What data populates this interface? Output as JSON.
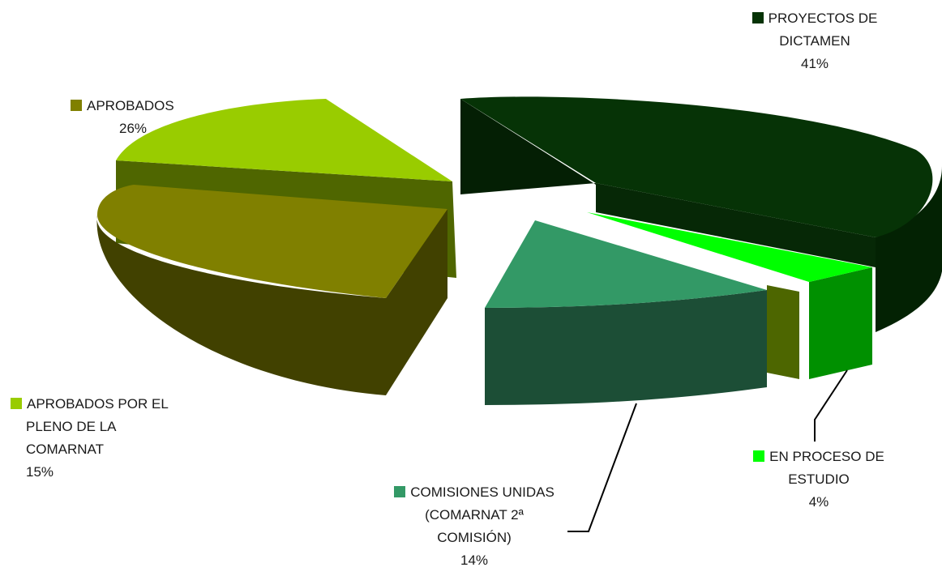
{
  "chart_data": {
    "type": "pie",
    "style": "3d-exploded",
    "slices": [
      {
        "label": "PROYECTOS DE DICTAMEN",
        "label_lines": [
          "PROYECTOS DE",
          "DICTAMEN"
        ],
        "value": 41,
        "display": "41%",
        "color": "#063306"
      },
      {
        "label": "EN PROCESO DE ESTUDIO",
        "label_lines": [
          "EN PROCESO DE",
          "ESTUDIO"
        ],
        "value": 4,
        "display": "4%",
        "color": "#00ff00"
      },
      {
        "label": "COMISIONES UNIDAS (COMARNAT 2ª COMISIÓN)",
        "label_lines": [
          "COMISIONES UNIDAS",
          "(COMARNAT 2ª",
          "COMISIÓN)"
        ],
        "value": 14,
        "display": "14%",
        "color": "#339966"
      },
      {
        "label": "APROBADOS POR EL PLENO DE LA COMARNAT",
        "label_lines": [
          "APROBADOS POR EL",
          "PLENO DE LA",
          "COMARNAT"
        ],
        "value": 15,
        "display": "15%",
        "color": "#808000"
      },
      {
        "label": "APROBADOS",
        "label_lines": [
          "APROBADOS"
        ],
        "value": 26,
        "display": "26%",
        "color": "#99cc00"
      }
    ],
    "legend_swatch_colors": [
      "#063306",
      "#00ff00",
      "#339966",
      "#99cc00",
      "#808000"
    ]
  }
}
